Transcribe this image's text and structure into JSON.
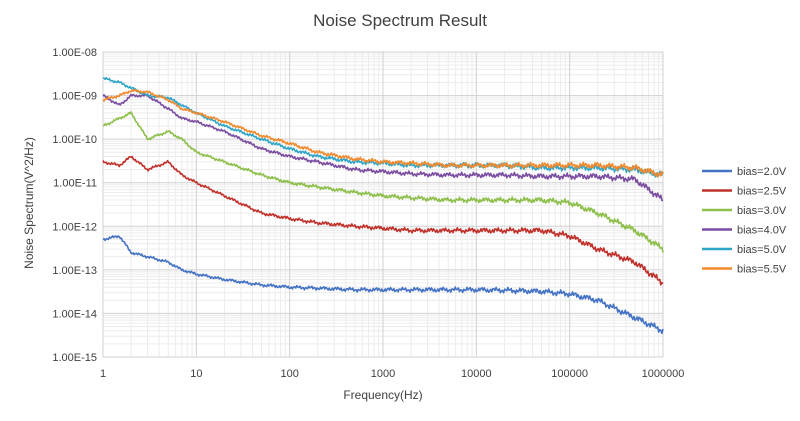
{
  "chart_data": {
    "type": "line",
    "title": "Noise Spectrum Result",
    "xlabel": "Frequency(Hz)",
    "ylabel": "Noise Spectrum(V^2/Hz)",
    "x_scale": "log",
    "y_scale": "log",
    "xlim": [
      1,
      1000000
    ],
    "ylim": [
      1e-15,
      1e-08
    ],
    "x_ticks": [
      "1",
      "10",
      "100",
      "1000",
      "10000",
      "100000",
      "1000000"
    ],
    "y_ticks": [
      "1.00E-15",
      "1.00E-14",
      "1.00E-13",
      "1.00E-12",
      "1.00E-11",
      "1.00E-10",
      "1.00E-09",
      "1.00E-08"
    ],
    "grid": "major and minor",
    "legend": "right",
    "x": [
      1,
      1.5,
      2,
      3,
      5,
      7,
      10,
      20,
      50,
      100,
      200,
      500,
      1000,
      2000,
      5000,
      10000,
      20000,
      50000,
      100000,
      200000,
      500000,
      1000000
    ],
    "series": [
      {
        "name": "bias=2.0V",
        "color": "#4472C4",
        "values": [
          5e-13,
          6e-13,
          2.5e-13,
          2e-13,
          1.5e-13,
          1e-13,
          8e-14,
          6e-14,
          4.5e-14,
          4e-14,
          3.8e-14,
          3.5e-14,
          3.5e-14,
          3.5e-14,
          3.5e-14,
          3.5e-14,
          3.4e-14,
          3.2e-14,
          2.8e-14,
          2e-14,
          8e-15,
          4e-15
        ]
      },
      {
        "name": "bias=2.5V",
        "color": "#C0312B",
        "values": [
          3e-11,
          2.5e-11,
          4e-11,
          2e-11,
          3e-11,
          1.5e-11,
          1e-11,
          5e-12,
          2e-12,
          1.5e-12,
          1.2e-12,
          1e-12,
          9e-13,
          8e-13,
          8e-13,
          8e-13,
          8e-13,
          8e-13,
          6e-13,
          3e-13,
          1.5e-13,
          5e-14
        ]
      },
      {
        "name": "bias=3.0V",
        "color": "#8DBF4B",
        "values": [
          2e-10,
          3e-10,
          4e-10,
          1e-10,
          1.5e-10,
          1e-10,
          5e-11,
          3e-11,
          1.5e-11,
          1e-11,
          8e-12,
          6e-12,
          5e-12,
          4.5e-12,
          4e-12,
          4e-12,
          4e-12,
          4e-12,
          3.5e-12,
          2e-12,
          8e-13,
          3e-13
        ]
      },
      {
        "name": "bias=4.0V",
        "color": "#7B4DA0",
        "values": [
          1e-09,
          6e-10,
          1e-09,
          1e-09,
          5e-10,
          3e-10,
          2.5e-10,
          1.5e-10,
          6e-11,
          4e-11,
          3e-11,
          2e-11,
          1.8e-11,
          1.6e-11,
          1.5e-11,
          1.5e-11,
          1.5e-11,
          1.4e-11,
          1.4e-11,
          1.4e-11,
          1.2e-11,
          4e-12
        ]
      },
      {
        "name": "bias=5.0V",
        "color": "#2FA6C8",
        "values": [
          2.5e-09,
          2e-09,
          1.5e-09,
          1e-09,
          9e-10,
          6e-10,
          4e-10,
          2e-10,
          1e-10,
          6e-11,
          4e-11,
          3e-11,
          2.8e-11,
          2.5e-11,
          2.5e-11,
          2.5e-11,
          2.5e-11,
          2.2e-11,
          2.2e-11,
          2.2e-11,
          2e-11,
          1.5e-11
        ]
      },
      {
        "name": "bias=5.5V",
        "color": "#F28A2E",
        "values": [
          8e-10,
          1e-09,
          1.3e-09,
          1.2e-09,
          8e-10,
          5e-10,
          4e-10,
          2.5e-10,
          1.2e-10,
          8e-11,
          5e-11,
          3.5e-11,
          3e-11,
          2.8e-11,
          2.5e-11,
          2.5e-11,
          2.5e-11,
          2.5e-11,
          2.5e-11,
          2.5e-11,
          2.2e-11,
          1.5e-11
        ]
      }
    ]
  }
}
